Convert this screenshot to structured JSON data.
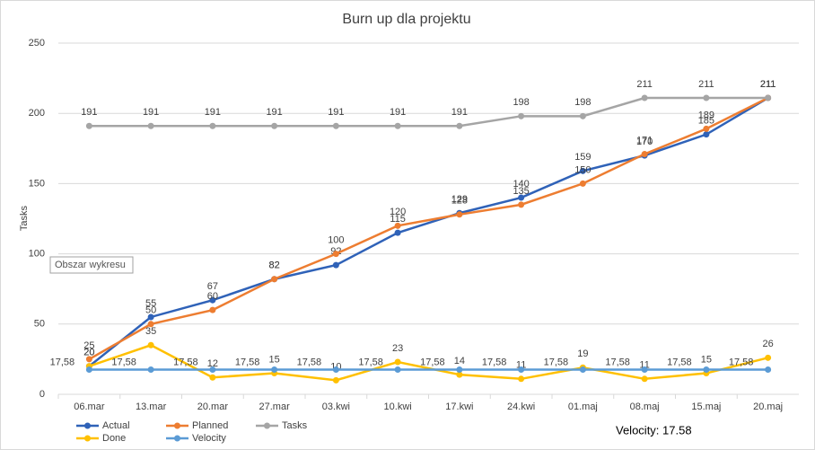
{
  "chart_data": {
    "type": "line",
    "title": "Burn up dla projektu",
    "y_label": "Tasks",
    "categories": [
      "06.mar",
      "13.mar",
      "20.mar",
      "27.mar",
      "03.kwi",
      "10.kwi",
      "17.kwi",
      "24.kwi",
      "01.maj",
      "08.maj",
      "15.maj",
      "20.maj"
    ],
    "series": [
      {
        "name": "Actual",
        "color": "#2f62b8",
        "values": [
          20,
          55,
          67,
          82,
          92,
          115,
          129,
          140,
          159,
          170,
          185,
          211
        ]
      },
      {
        "name": "Planned",
        "color": "#ed7d31",
        "values": [
          25,
          50,
          60,
          82,
          100,
          120,
          128,
          135,
          150,
          171,
          189,
          211
        ]
      },
      {
        "name": "Tasks",
        "color": "#a5a5a5",
        "values": [
          191,
          191,
          191,
          191,
          191,
          191,
          191,
          198,
          198,
          211,
          211,
          211
        ]
      },
      {
        "name": "Done",
        "color": "#ffc000",
        "values": [
          20,
          35,
          12,
          15,
          10,
          23,
          14,
          11,
          19,
          11,
          15,
          26
        ]
      },
      {
        "name": "Velocity",
        "color": "#5b9bd5",
        "values": [
          17.58,
          17.58,
          17.58,
          17.58,
          17.58,
          17.58,
          17.58,
          17.58,
          17.58,
          17.58,
          17.58,
          17.58
        ],
        "value_labels": [
          "17,58",
          "17,58",
          "17,58",
          "17,58",
          "17,58",
          "17,58",
          "17,58",
          "17,58",
          "17,58",
          "17,58",
          "17,58",
          "17,58"
        ]
      }
    ],
    "ylim": [
      0,
      250
    ],
    "yticks": [
      0,
      50,
      100,
      150,
      200,
      250
    ],
    "grid": true,
    "annotation": "Velocity: 17.58",
    "tooltip": "Obszar wykresu"
  }
}
